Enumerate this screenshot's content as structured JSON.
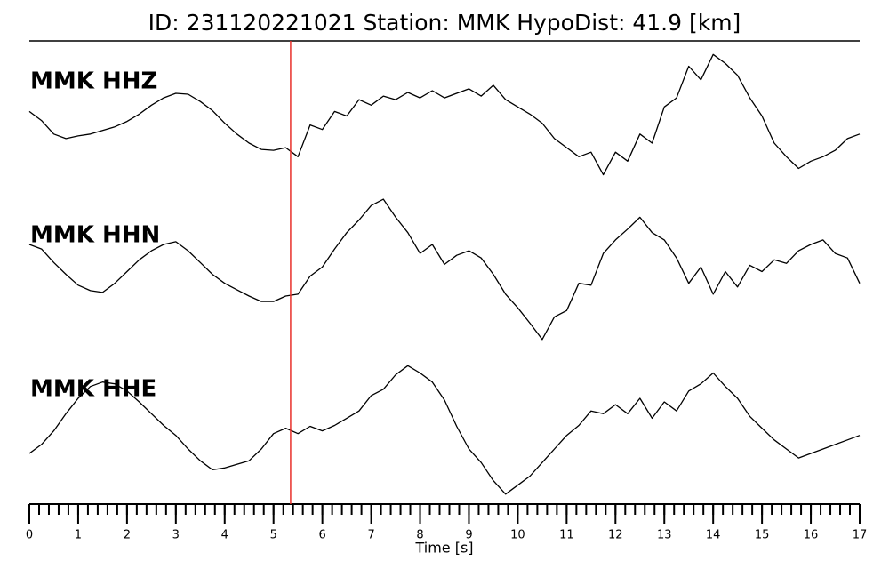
{
  "chart_data": {
    "type": "waveform",
    "title": "ID: 231120221021   Station: MMK   HypoDist:     41.9 [km]",
    "x_label": "Time [s]",
    "xlim": [
      0,
      17
    ],
    "xticks": [
      0,
      1,
      2,
      3,
      4,
      5,
      6,
      7,
      8,
      9,
      10,
      11,
      12,
      13,
      14,
      15,
      16,
      17
    ],
    "xminor_step": 0.2,
    "ylim": [
      -85,
      85
    ],
    "pick": {
      "x": 5.35,
      "color": "#e8302a"
    },
    "label_color": "#4c9a00",
    "x": [
      0,
      0.25,
      0.5,
      0.75,
      1,
      1.25,
      1.5,
      1.75,
      2,
      2.25,
      2.5,
      2.75,
      3,
      3.25,
      3.5,
      3.75,
      4,
      4.25,
      4.5,
      4.75,
      5,
      5.25,
      5.5,
      5.75,
      6,
      6.25,
      6.5,
      6.75,
      7,
      7.25,
      7.5,
      7.75,
      8,
      8.25,
      8.5,
      8.75,
      9,
      9.25,
      9.5,
      9.75,
      10,
      10.25,
      10.5,
      10.75,
      11,
      11.25,
      11.5,
      11.75,
      12,
      12.25,
      12.5,
      12.75,
      13,
      13.25,
      13.5,
      13.75,
      14,
      14.25,
      14.5,
      14.75,
      15,
      15.25,
      15.5,
      15.75,
      16,
      16.25,
      16.5,
      16.75,
      17
    ],
    "series": [
      {
        "name": "MMK HHZ",
        "color": "#000000",
        "values": [
          7,
          -3,
          -18,
          -23,
          -20,
          -18,
          -14,
          -10,
          -4,
          4,
          14,
          22,
          27,
          26,
          18,
          8,
          -6,
          -18,
          -28,
          -35,
          -36,
          -33,
          -43,
          -8,
          -13,
          7,
          2,
          20,
          14,
          24,
          20,
          28,
          22,
          30,
          22,
          27,
          32,
          24,
          36,
          20,
          12,
          4,
          -6,
          -23,
          -33,
          -43,
          -38,
          -63,
          -38,
          -48,
          -18,
          -28,
          12,
          22,
          57,
          42,
          70,
          60,
          47,
          22,
          2,
          -28,
          -43,
          -56,
          -48,
          -43,
          -36,
          -23,
          -18
        ]
      },
      {
        "name": "MMK HHN",
        "color": "#000000",
        "values": [
          30,
          25,
          10,
          -3,
          -15,
          -21,
          -23,
          -13,
          0,
          13,
          23,
          30,
          33,
          23,
          10,
          -3,
          -13,
          -20,
          -27,
          -33,
          -33,
          -27,
          -25,
          -5,
          5,
          25,
          43,
          57,
          73,
          80,
          60,
          43,
          20,
          30,
          8,
          18,
          23,
          15,
          -3,
          -25,
          -40,
          -57,
          -75,
          -50,
          -43,
          -13,
          -15,
          20,
          35,
          47,
          60,
          43,
          35,
          15,
          -13,
          5,
          -25,
          0,
          -17,
          7,
          0,
          13,
          9,
          23,
          30,
          35,
          20,
          15,
          -13
        ]
      },
      {
        "name": "MMK HHE",
        "color": "#000000",
        "values": [
          -31,
          -21,
          -6,
          13,
          30,
          43,
          48,
          46,
          38,
          26,
          13,
          0,
          -11,
          -26,
          -39,
          -49,
          -47,
          -43,
          -39,
          -26,
          -9,
          -3,
          -9,
          -1,
          -6,
          0,
          8,
          16,
          33,
          40,
          56,
          66,
          58,
          48,
          28,
          -1,
          -26,
          -41,
          -61,
          -76,
          -66,
          -56,
          -41,
          -26,
          -11,
          0,
          16,
          13,
          23,
          13,
          30,
          8,
          26,
          16,
          38,
          46,
          58,
          43,
          30,
          10,
          -3,
          -16,
          -26,
          -36,
          -31,
          -26,
          -21,
          -16,
          -11
        ]
      }
    ]
  }
}
